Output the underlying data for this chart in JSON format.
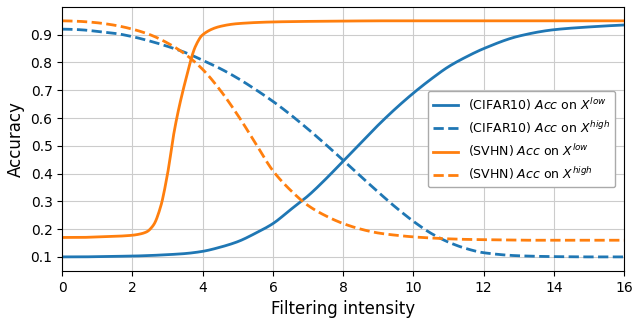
{
  "xlabel": "Filtering intensity",
  "ylabel": "Accuracy",
  "xlim": [
    0,
    16
  ],
  "ylim": [
    0.05,
    1.0
  ],
  "xticks": [
    0,
    2,
    4,
    6,
    8,
    10,
    12,
    14,
    16
  ],
  "yticks": [
    0.1,
    0.2,
    0.3,
    0.4,
    0.5,
    0.6,
    0.7,
    0.8,
    0.9
  ],
  "blue_color": "#1f77b4",
  "orange_color": "#ff7f0e",
  "cifar10_low_x": [
    0,
    0.5,
    1,
    1.5,
    2,
    2.5,
    3,
    3.5,
    4,
    4.5,
    5,
    5.5,
    6,
    6.5,
    7,
    7.5,
    8,
    8.5,
    9,
    9.5,
    10,
    10.5,
    11,
    11.5,
    12,
    13,
    14,
    15,
    16
  ],
  "cifar10_low_y": [
    0.1,
    0.1,
    0.101,
    0.102,
    0.103,
    0.105,
    0.108,
    0.112,
    0.12,
    0.135,
    0.155,
    0.185,
    0.22,
    0.27,
    0.32,
    0.38,
    0.445,
    0.51,
    0.575,
    0.635,
    0.69,
    0.74,
    0.785,
    0.82,
    0.85,
    0.895,
    0.918,
    0.928,
    0.935
  ],
  "cifar10_high_x": [
    0,
    0.5,
    1,
    1.5,
    2,
    2.5,
    3,
    3.5,
    4,
    4.5,
    5,
    5.5,
    6,
    6.5,
    7,
    7.5,
    8,
    8.5,
    9,
    9.5,
    10,
    10.5,
    11,
    11.5,
    12,
    13,
    14,
    15,
    16
  ],
  "cifar10_high_y": [
    0.92,
    0.918,
    0.912,
    0.905,
    0.893,
    0.877,
    0.858,
    0.836,
    0.808,
    0.778,
    0.743,
    0.703,
    0.66,
    0.612,
    0.56,
    0.505,
    0.448,
    0.39,
    0.333,
    0.278,
    0.228,
    0.185,
    0.153,
    0.13,
    0.115,
    0.104,
    0.101,
    0.1,
    0.1
  ],
  "svhn_low_x": [
    0,
    0.5,
    1,
    1.5,
    2,
    2.2,
    2.4,
    2.6,
    2.8,
    3,
    3.2,
    3.5,
    3.8,
    4,
    4.5,
    5,
    6,
    7,
    8,
    9,
    10,
    11,
    12,
    13,
    14,
    15,
    16
  ],
  "svhn_low_y": [
    0.17,
    0.17,
    0.172,
    0.174,
    0.178,
    0.182,
    0.19,
    0.215,
    0.28,
    0.4,
    0.56,
    0.73,
    0.86,
    0.9,
    0.93,
    0.94,
    0.946,
    0.948,
    0.949,
    0.95,
    0.95,
    0.95,
    0.95,
    0.95,
    0.95,
    0.95,
    0.95
  ],
  "svhn_high_x": [
    0,
    0.5,
    1,
    1.5,
    2,
    2.5,
    3,
    3.5,
    4,
    4.5,
    5,
    5.5,
    6,
    6.5,
    7,
    7.5,
    8,
    8.5,
    9,
    9.5,
    10,
    10.5,
    11,
    11.5,
    12,
    13,
    14,
    15,
    16
  ],
  "svhn_high_y": [
    0.95,
    0.948,
    0.943,
    0.934,
    0.92,
    0.9,
    0.87,
    0.83,
    0.775,
    0.7,
    0.61,
    0.51,
    0.41,
    0.34,
    0.285,
    0.248,
    0.22,
    0.2,
    0.186,
    0.178,
    0.172,
    0.168,
    0.165,
    0.163,
    0.162,
    0.16,
    0.16,
    0.16,
    0.16
  ]
}
